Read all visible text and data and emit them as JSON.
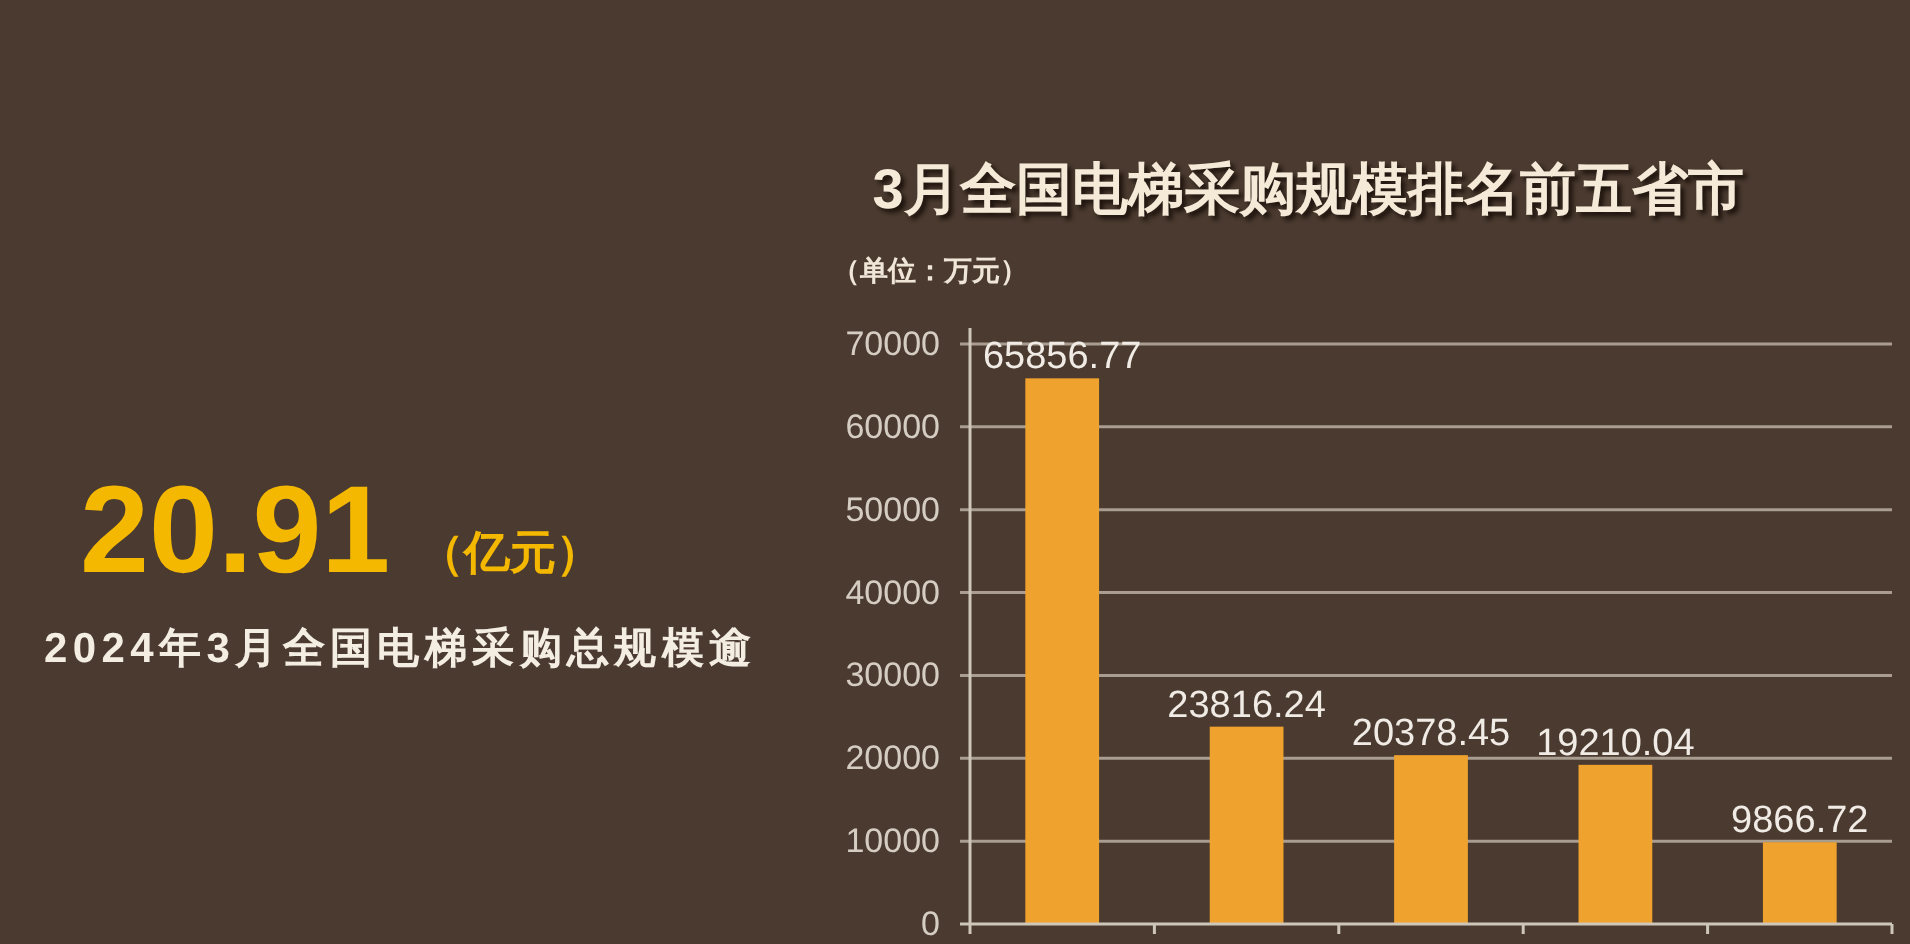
{
  "chart_data": [
    {
      "type": "other",
      "annotations": [
        "20.91",
        "（亿元）",
        "2024年3月全国电梯采购总规模逾"
      ]
    },
    {
      "type": "bar",
      "title": "3月全国电梯采购规模排名前五省市",
      "ylabel": "（单位：万元）",
      "categories": [
        null,
        null,
        null,
        null,
        null
      ],
      "values": [
        65856.77,
        23816.24,
        20378.45,
        19210.04,
        9866.72
      ],
      "color": "#f0a22e",
      "ylim": [
        0,
        70000
      ],
      "yticks": [
        0,
        10000,
        20000,
        30000,
        40000,
        50000,
        60000,
        70000
      ],
      "grid": "y",
      "data_labels": true
    }
  ]
}
